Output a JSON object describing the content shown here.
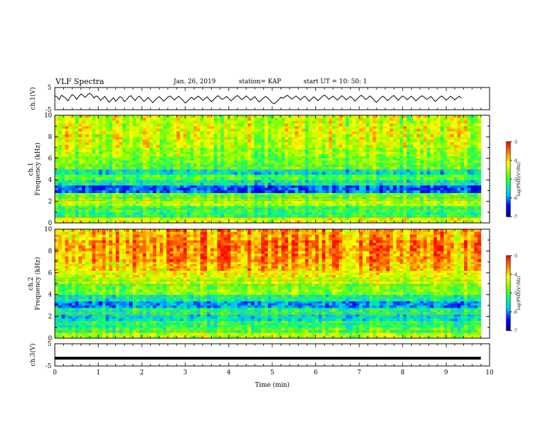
{
  "header": {
    "title": "VLF Spectra",
    "date": "Jan. 26, 2019",
    "station": "station= KAP",
    "start_ut": "start  UT  =   10: 50: 1"
  },
  "colors": {
    "frame": "#000000",
    "colormap": [
      "#000080",
      "#0000ff",
      "#00bfff",
      "#00ff7f",
      "#7fff00",
      "#ffff00",
      "#ff7f00",
      "#ff0000"
    ]
  },
  "chart_data": [
    {
      "type": "line",
      "name": "ch1-waveform",
      "ylabel": "ch.1(V)",
      "ylim": [
        -5,
        5
      ],
      "y_ticks": [
        "5",
        "-5"
      ],
      "xlim": [
        0,
        10
      ],
      "x_end": 9.8,
      "x_step": 0.05,
      "y": [
        1.2,
        0.8,
        -0.5,
        1.5,
        0.9,
        0.2,
        -1.0,
        0.6,
        1.8,
        1.1,
        -0.3,
        0.9,
        2.1,
        1.4,
        0.5,
        1.7,
        2.4,
        1.6,
        0.3,
        1.2,
        0.7,
        -0.8,
        0.1,
        1.0,
        -0.4,
        -1.6,
        -0.6,
        0.4,
        -1.2,
        -0.2,
        0.9,
        0.3,
        -1.4,
        -0.5,
        0.8,
        1.3,
        0.1,
        -0.9,
        0.6,
        1.1,
        -0.2,
        -1.3,
        -0.4,
        0.5,
        -0.7,
        -1.8,
        -0.8,
        0.2,
        0.9,
        0.0,
        -1.1,
        -0.3,
        0.7,
        1.2,
        0.4,
        -0.6,
        0.3,
        1.0,
        0.2,
        -0.9,
        -2.0,
        -1.2,
        -0.1,
        0.6,
        -0.5,
        0.4,
        1.1,
        0.3,
        -0.8,
        0.0,
        0.8,
        -0.3,
        -1.4,
        -0.6,
        0.5,
        1.3,
        0.6,
        -0.4,
        0.2,
        1.0,
        0.1,
        -1.0,
        -0.2,
        0.7,
        1.4,
        0.5,
        -0.5,
        0.3,
        1.2,
        0.4,
        -0.7,
        0.1,
        0.9,
        -0.4,
        -1.5,
        -0.7,
        0.3,
        1.0,
        0.2,
        -0.8,
        -1.9,
        -2.3,
        -1.5,
        -0.4,
        0.6,
        0.2,
        0.9,
        1.5,
        0.7,
        -0.2,
        0.5,
        1.2,
        0.3,
        -0.6,
        0.4,
        1.1,
        0.0,
        -1.2,
        -0.3,
        0.8,
        0.2,
        -0.9,
        -0.1,
        0.9,
        1.6,
        0.8,
        -0.3,
        0.4,
        1.1,
        0.2,
        -0.7,
        0.3,
        1.3,
        0.5,
        -0.6,
        0.2,
        1.0,
        0.1,
        -1.1,
        -0.2,
        0.8,
        1.5,
        0.6,
        -0.4,
        0.3,
        1.2,
        0.4,
        -0.8,
        -1.7,
        -0.6,
        0.5,
        1.1,
        0.2,
        -0.9,
        -0.1,
        0.9,
        1.4,
        0.3,
        -0.8,
        0.4,
        1.2,
        0.5,
        -0.5,
        0.3,
        1.1,
        0.2,
        -1.0,
        -0.3,
        0.7,
        1.3,
        0.6,
        -0.4,
        0.2,
        1.0,
        -0.1,
        -1.3,
        -0.4,
        0.6,
        1.2,
        0.3,
        -0.7,
        0.1,
        1.0,
        0.4,
        -0.6,
        0.3,
        1.1,
        0.2
      ]
    },
    {
      "type": "heatmap",
      "name": "ch1-spectrogram",
      "ylabel": "ch.1\nFrequency (kHz)",
      "xlim": [
        0,
        10
      ],
      "ylim": [
        0,
        10
      ],
      "x_end": 9.8,
      "y_ticks": [
        "0",
        "2",
        "4",
        "6",
        "8",
        "10"
      ],
      "colorbar": {
        "label": "log(PSD)(V²/Hz)",
        "range": [
          -7,
          -3
        ],
        "ticks": [
          "-3",
          "-4",
          "-5",
          "-6",
          "-7"
        ]
      },
      "band_edges_khz": [
        0,
        0.5,
        1.0,
        1.6,
        2.2,
        2.8,
        3.5,
        4.0,
        4.5,
        5.0,
        5.6,
        6.2,
        7.0,
        8.0,
        9.0,
        10.0
      ],
      "band_log_psd": [
        -4.3,
        -5.2,
        -5.1,
        -4.5,
        -4.9,
        -6.2,
        -5.5,
        -5.0,
        -5.6,
        -4.9,
        -4.8,
        -4.6,
        -4.4,
        -4.3,
        -4.4
      ]
    },
    {
      "type": "heatmap",
      "name": "ch2-spectrogram",
      "ylabel": "ch.2\nFrequency (kHz)",
      "xlim": [
        0,
        10
      ],
      "ylim": [
        0,
        10
      ],
      "x_end": 9.8,
      "y_ticks": [
        "0",
        "2",
        "4",
        "6",
        "8",
        "10"
      ],
      "colorbar": {
        "label": "log(PSD)(V²/Hz)",
        "range": [
          -7,
          -3
        ],
        "ticks": [
          "-3",
          "-4",
          "-5",
          "-6",
          "-7"
        ]
      },
      "band_edges_khz": [
        0,
        0.5,
        1.0,
        1.6,
        2.2,
        2.8,
        3.4,
        4.0,
        4.5,
        5.0,
        5.6,
        6.2,
        7.0,
        8.0,
        9.0,
        10.0
      ],
      "band_log_psd": [
        -4.5,
        -5.0,
        -5.2,
        -5.6,
        -5.3,
        -6.0,
        -5.4,
        -4.7,
        -4.8,
        -4.5,
        -4.2,
        -3.9,
        -3.7,
        -3.6,
        -3.8
      ]
    },
    {
      "type": "line",
      "name": "ch3-waveform",
      "ylabel": "ch.3(V)",
      "ylim": [
        -5,
        5
      ],
      "y_ticks": [
        "5",
        "-5"
      ],
      "xlim": [
        0,
        10
      ],
      "x_end": 9.8,
      "constant_value": -1.5
    }
  ],
  "x_axis": {
    "label": "Time (min)",
    "ticks": [
      "0",
      "1",
      "2",
      "3",
      "4",
      "5",
      "6",
      "7",
      "8",
      "9",
      "10"
    ]
  }
}
